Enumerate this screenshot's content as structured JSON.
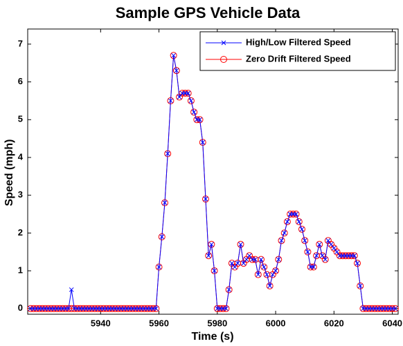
{
  "chart_data": {
    "type": "line",
    "title": "Sample GPS Vehicle Data",
    "xlabel": "Time (s)",
    "ylabel": "Speed (mph)",
    "x": [
      5916,
      5917,
      5918,
      5919,
      5920,
      5921,
      5922,
      5923,
      5924,
      5925,
      5926,
      5927,
      5928,
      5929,
      5930,
      5931,
      5932,
      5933,
      5934,
      5935,
      5936,
      5937,
      5938,
      5939,
      5940,
      5941,
      5942,
      5943,
      5944,
      5945,
      5946,
      5947,
      5948,
      5949,
      5950,
      5951,
      5952,
      5953,
      5954,
      5955,
      5956,
      5957,
      5958,
      5959,
      5960,
      5961,
      5962,
      5963,
      5964,
      5965,
      5966,
      5967,
      5968,
      5969,
      5970,
      5971,
      5972,
      5973,
      5974,
      5975,
      5976,
      5977,
      5978,
      5979,
      5980,
      5981,
      5982,
      5983,
      5984,
      5985,
      5986,
      5987,
      5988,
      5989,
      5990,
      5991,
      5992,
      5993,
      5994,
      5995,
      5996,
      5997,
      5998,
      5999,
      6000,
      6001,
      6002,
      6003,
      6004,
      6005,
      6006,
      6007,
      6008,
      6009,
      6010,
      6011,
      6012,
      6013,
      6014,
      6015,
      6016,
      6017,
      6018,
      6019,
      6020,
      6021,
      6022,
      6023,
      6024,
      6025,
      6026,
      6027,
      6028,
      6029,
      6030,
      6031,
      6032,
      6033,
      6034,
      6035,
      6036,
      6037,
      6038,
      6039,
      6040,
      6041
    ],
    "series": [
      {
        "name": "High/Low Filtered Speed",
        "color": "#0000ff",
        "marker": "x",
        "values": [
          0,
          0,
          0,
          0,
          0,
          0,
          0,
          0,
          0,
          0,
          0,
          0,
          0,
          0,
          0.5,
          0,
          0,
          0,
          0,
          0,
          0,
          0,
          0,
          0,
          0,
          0,
          0,
          0,
          0,
          0,
          0,
          0,
          0,
          0,
          0,
          0,
          0,
          0,
          0,
          0,
          0,
          0,
          0,
          0,
          1.1,
          1.9,
          2.8,
          4.1,
          5.5,
          6.7,
          6.3,
          5.6,
          5.7,
          5.7,
          5.7,
          5.5,
          5.2,
          5.0,
          5.0,
          4.4,
          2.9,
          1.4,
          1.7,
          1.0,
          0,
          0,
          0,
          0,
          0.5,
          1.2,
          1.1,
          1.2,
          1.7,
          1.2,
          1.3,
          1.4,
          1.3,
          1.3,
          0.9,
          1.3,
          1.1,
          0.9,
          0.6,
          0.9,
          1.0,
          1.3,
          1.8,
          2.0,
          2.3,
          2.5,
          2.5,
          2.5,
          2.3,
          2.1,
          1.8,
          1.5,
          1.1,
          1.1,
          1.4,
          1.7,
          1.4,
          1.3,
          1.8,
          1.7,
          1.6,
          1.5,
          1.4,
          1.4,
          1.4,
          1.4,
          1.4,
          1.4,
          1.2,
          0.6,
          0,
          0,
          0,
          0,
          0,
          0,
          0,
          0,
          0,
          0,
          0,
          0
        ]
      },
      {
        "name": "Zero Drift Filtered Speed",
        "color": "#ff0000",
        "marker": "o",
        "values": [
          0,
          0,
          0,
          0,
          0,
          0,
          0,
          0,
          0,
          0,
          0,
          0,
          0,
          0,
          0,
          0,
          0,
          0,
          0,
          0,
          0,
          0,
          0,
          0,
          0,
          0,
          0,
          0,
          0,
          0,
          0,
          0,
          0,
          0,
          0,
          0,
          0,
          0,
          0,
          0,
          0,
          0,
          0,
          0,
          1.1,
          1.9,
          2.8,
          4.1,
          5.5,
          6.7,
          6.3,
          5.6,
          5.7,
          5.7,
          5.7,
          5.5,
          5.2,
          5.0,
          5.0,
          4.4,
          2.9,
          1.4,
          1.7,
          1.0,
          0,
          0,
          0,
          0,
          0.5,
          1.2,
          1.1,
          1.2,
          1.7,
          1.2,
          1.3,
          1.4,
          1.3,
          1.3,
          0.9,
          1.3,
          1.1,
          0.9,
          0.6,
          0.9,
          1.0,
          1.3,
          1.8,
          2.0,
          2.3,
          2.5,
          2.5,
          2.5,
          2.3,
          2.1,
          1.8,
          1.5,
          1.1,
          1.1,
          1.4,
          1.7,
          1.4,
          1.3,
          1.8,
          1.7,
          1.6,
          1.5,
          1.4,
          1.4,
          1.4,
          1.4,
          1.4,
          1.4,
          1.2,
          0.6,
          0,
          0,
          0,
          0,
          0,
          0,
          0,
          0,
          0,
          0,
          0,
          0
        ]
      }
    ],
    "xlim": [
      5915,
      6042
    ],
    "xticks": [
      5940,
      5960,
      5980,
      6000,
      6020,
      6040
    ],
    "ylim": [
      -0.15,
      7.4
    ],
    "yticks": [
      0,
      1,
      2,
      3,
      4,
      5,
      6,
      7
    ],
    "grid": false,
    "legend": "upper right"
  }
}
